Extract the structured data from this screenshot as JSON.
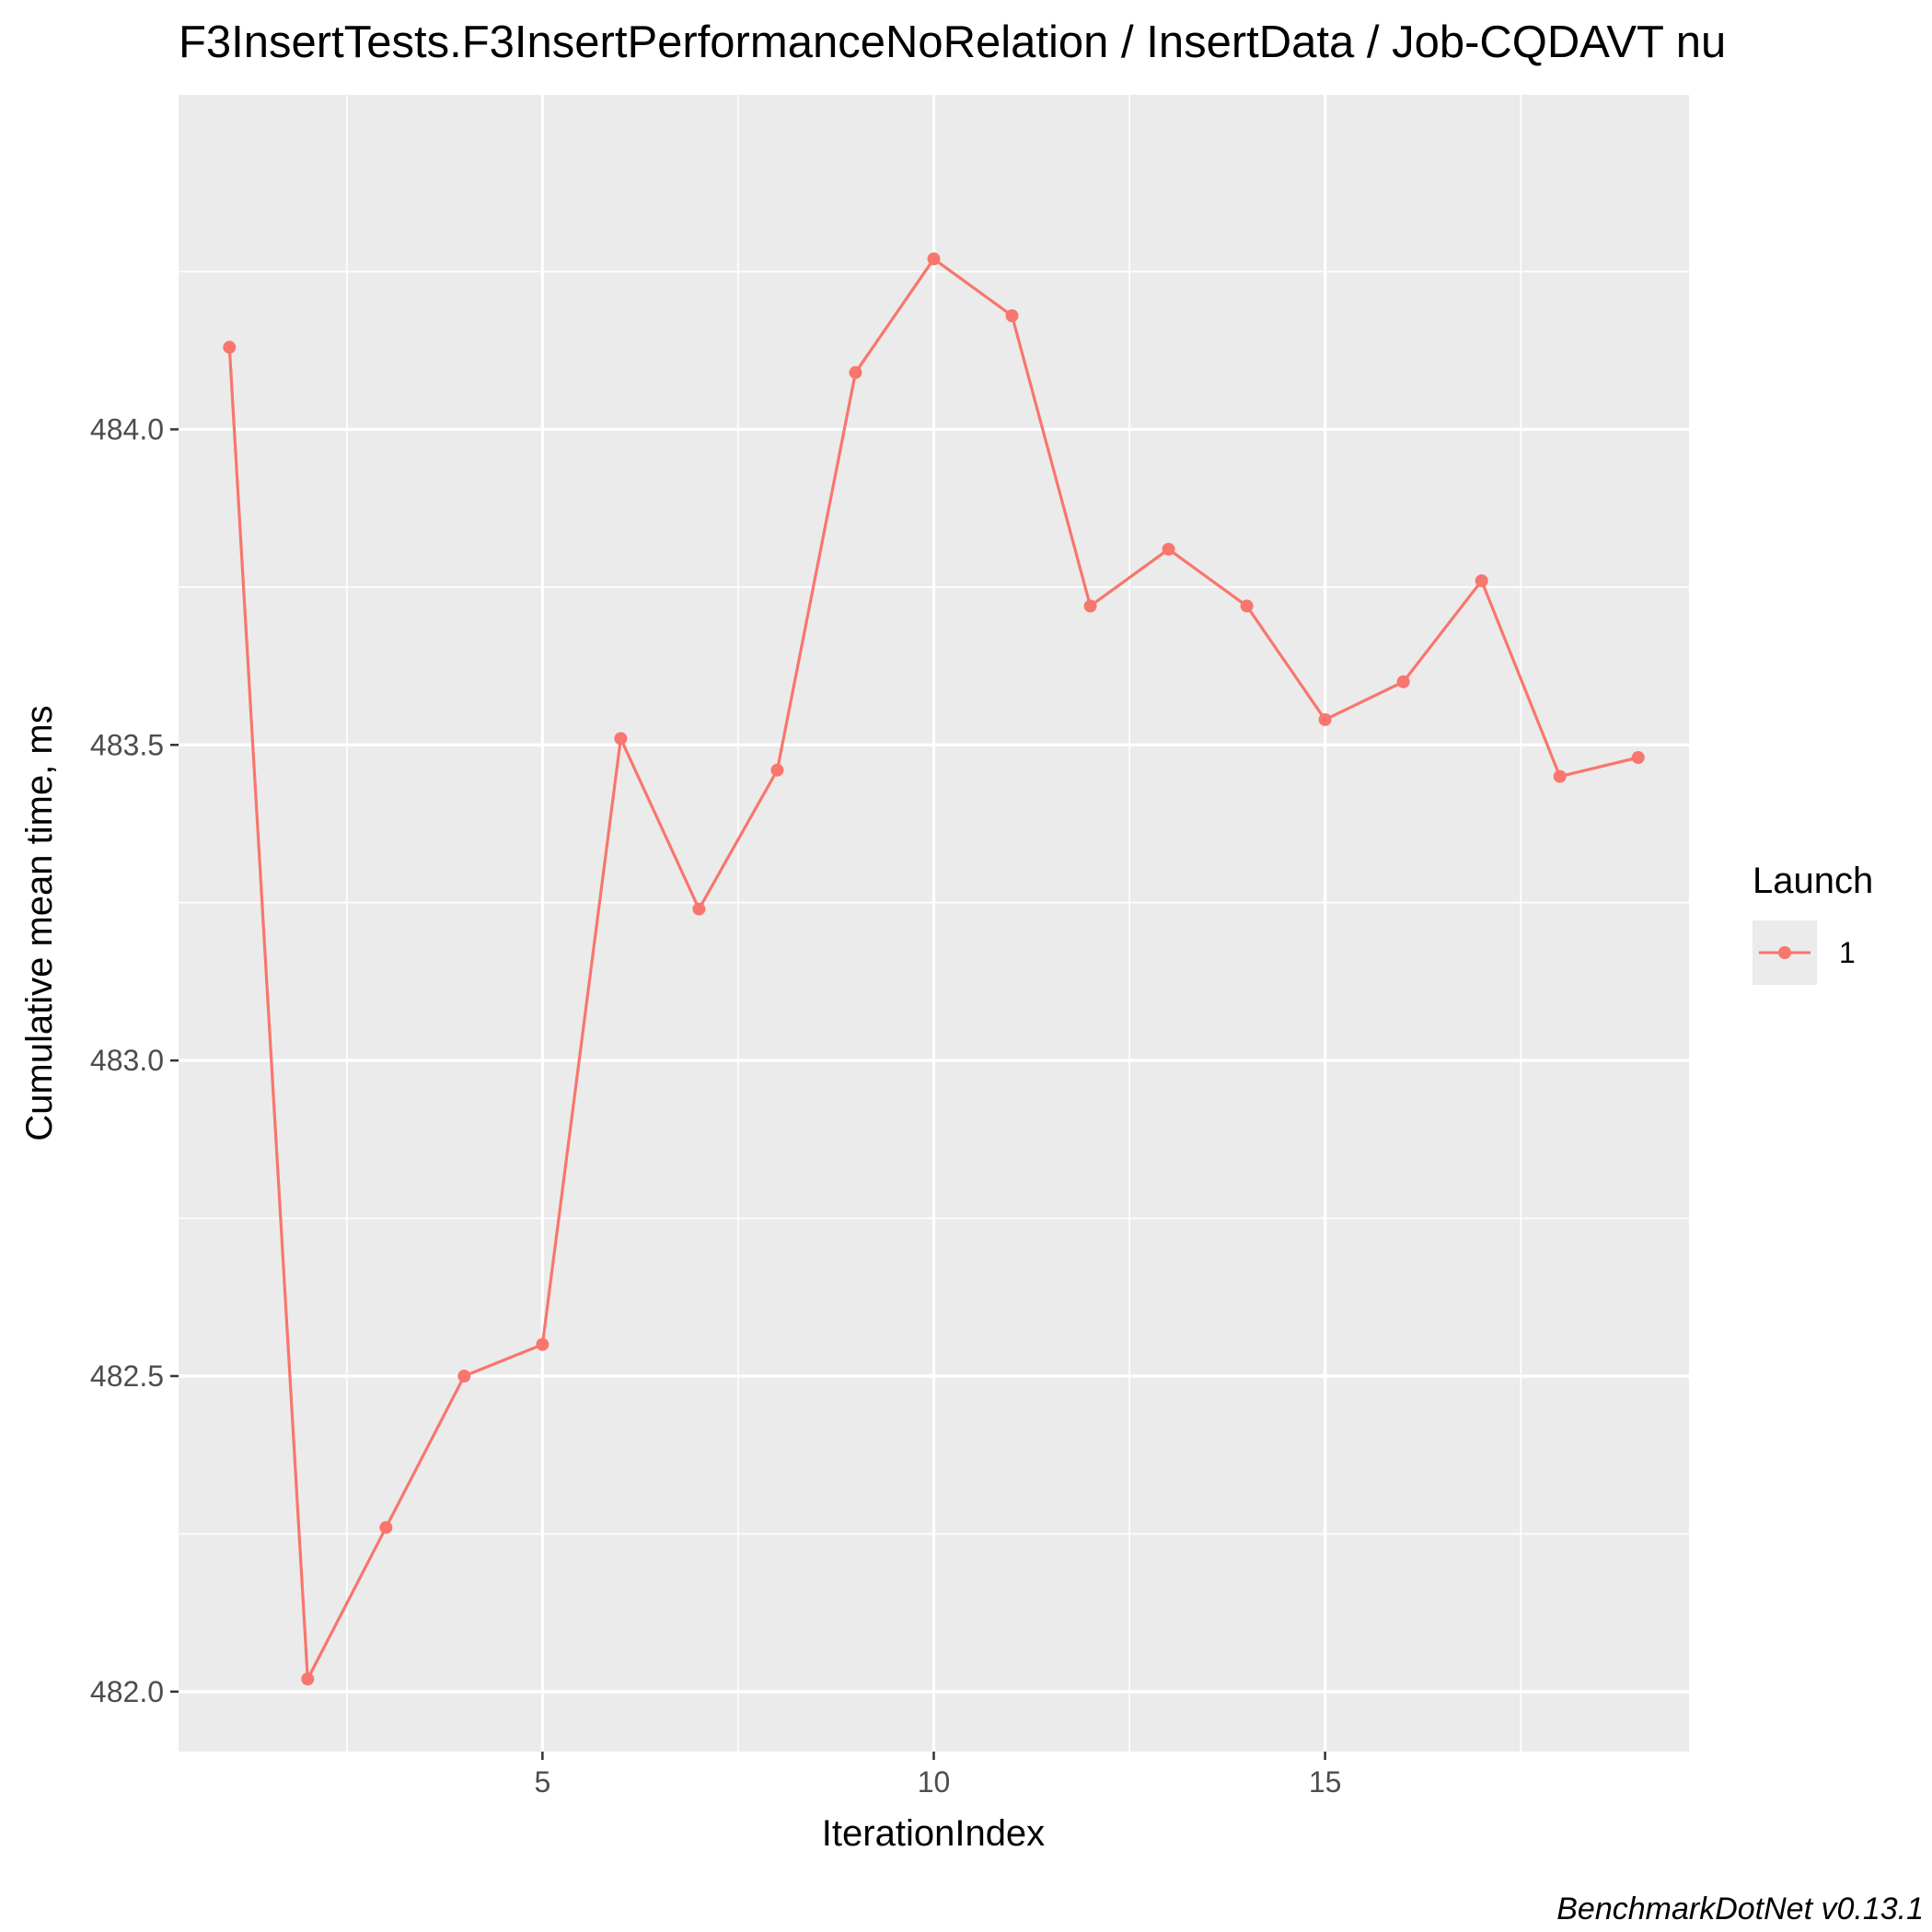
{
  "chart_data": {
    "type": "line",
    "title": "F3InsertTests.F3InsertPerformanceNoRelation / InsertData / Job-CQDAVT nu",
    "xlabel": "IterationIndex",
    "ylabel": "Cumulative mean time, ms",
    "caption": "BenchmarkDotNet v0.13.1",
    "x_ticks": [
      "5",
      "10",
      "15"
    ],
    "y_ticks": [
      "482.0",
      "482.5",
      "483.0",
      "483.5",
      "484.0"
    ],
    "xlim": [
      0.35,
      19.65
    ],
    "ylim": [
      481.905,
      484.53
    ],
    "grid": true,
    "legend": {
      "title": "Launch",
      "position": "right",
      "items": [
        "1"
      ]
    },
    "series": [
      {
        "name": "1",
        "color": "#F8766D",
        "x": [
          1,
          2,
          3,
          4,
          5,
          6,
          7,
          8,
          9,
          10,
          11,
          12,
          13,
          14,
          15,
          16,
          17,
          18,
          19
        ],
        "y": [
          484.13,
          482.02,
          482.26,
          482.5,
          482.55,
          483.51,
          483.24,
          483.46,
          484.09,
          484.27,
          484.18,
          483.72,
          483.81,
          483.72,
          483.54,
          483.6,
          483.76,
          483.45,
          483.48
        ]
      }
    ]
  }
}
